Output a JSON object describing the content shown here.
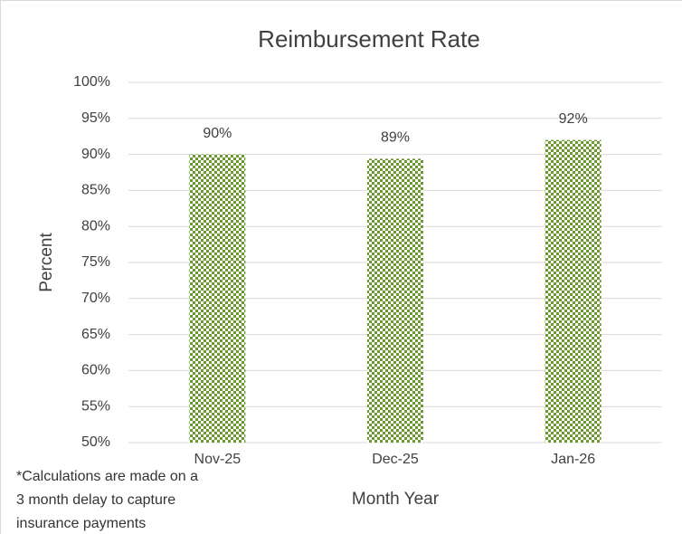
{
  "chart_data": {
    "type": "bar",
    "title": "Reimbursement Rate",
    "categories": [
      "Nov-25",
      "Dec-25",
      "Jan-26"
    ],
    "values": [
      90,
      89.4,
      92
    ],
    "value_labels": [
      "90%",
      "89%",
      "92%"
    ],
    "color": "#6a9a2e",
    "ylim": [
      50,
      100
    ],
    "yticks": [
      {
        "value": 50,
        "label": "50%"
      },
      {
        "value": 55,
        "label": "55%"
      },
      {
        "value": 60,
        "label": "60%"
      },
      {
        "value": 65,
        "label": "65%"
      },
      {
        "value": 70,
        "label": "70%"
      },
      {
        "value": 75,
        "label": "75%"
      },
      {
        "value": 80,
        "label": "80%"
      },
      {
        "value": 85,
        "label": "85%"
      },
      {
        "value": 90,
        "label": "90%"
      },
      {
        "value": 95,
        "label": "95%"
      },
      {
        "value": 100,
        "label": "100%"
      }
    ],
    "grid": true,
    "ylabel": "Percent",
    "xlabel": "Month Year",
    "note": [
      "*Calculations are made on a",
      "3 month delay to capture",
      "insurance payments"
    ]
  }
}
